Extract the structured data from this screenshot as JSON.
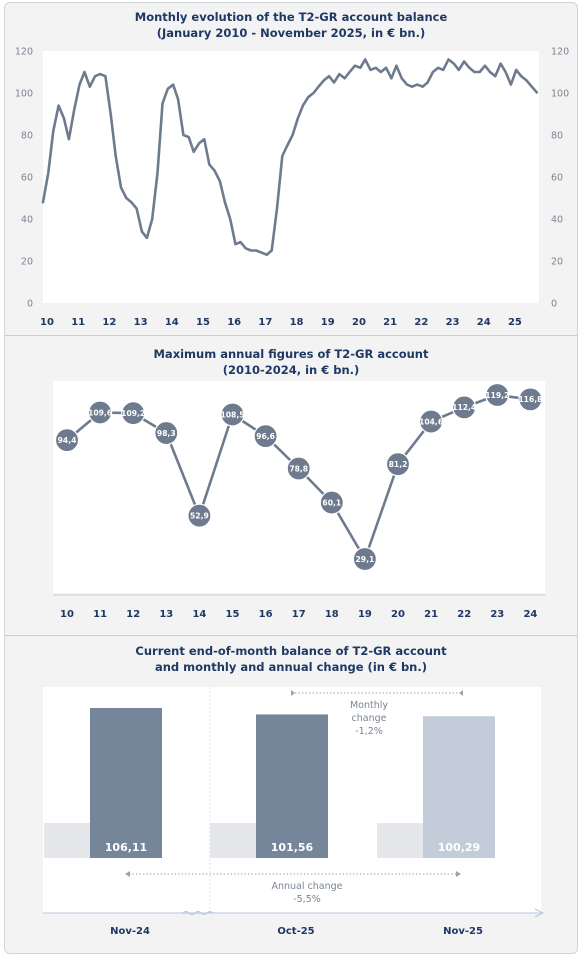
{
  "panels": {
    "monthly": {
      "title_line1": "Monthly evolution of the T2-GR account balance",
      "title_line2": "(January 2010  - November 2025,  in € bn.)"
    },
    "annual": {
      "title_line1": "Maximum annual figures of T2-GR account",
      "title_line2": "(2010-2024,  in € bn.)"
    },
    "current": {
      "title_line1": "Current end-of-month balance of T2-GR account",
      "title_line2": "and monthly and annual change (in € bn.)",
      "monthly_change_label_1": "Monthly",
      "monthly_change_label_2": "change",
      "monthly_change_value": "-1,2%",
      "annual_change_label": "Annual change",
      "annual_change_value": "-5,5%"
    }
  },
  "colors": {
    "line": "#6e7b8e",
    "bar_dark": "#75859a",
    "bar_light": "#c3ccd9",
    "title": "#1f3864",
    "axis": "#7c8594"
  },
  "chart_data": [
    {
      "type": "line",
      "title": "Monthly evolution of the T2-GR account balance (January 2010  - November 2025,  in € bn.)",
      "ylim": [
        0,
        120
      ],
      "y_ticks": [
        "0",
        "20",
        "40",
        "60",
        "80",
        "100",
        "120"
      ],
      "x_ticks": [
        "10",
        "11",
        "12",
        "13",
        "14",
        "15",
        "16",
        "17",
        "18",
        "19",
        "20",
        "21",
        "22",
        "23",
        "24",
        "25"
      ],
      "x": [
        2010.0,
        2010.17,
        2010.33,
        2010.5,
        2010.67,
        2010.83,
        2011.0,
        2011.17,
        2011.33,
        2011.5,
        2011.67,
        2011.83,
        2012.0,
        2012.17,
        2012.33,
        2012.5,
        2012.67,
        2012.83,
        2013.0,
        2013.17,
        2013.33,
        2013.5,
        2013.67,
        2013.83,
        2014.0,
        2014.17,
        2014.33,
        2014.5,
        2014.67,
        2014.83,
        2015.0,
        2015.17,
        2015.33,
        2015.5,
        2015.67,
        2015.83,
        2016.0,
        2016.17,
        2016.33,
        2016.5,
        2016.67,
        2016.83,
        2017.0,
        2017.17,
        2017.33,
        2017.5,
        2017.67,
        2017.83,
        2018.0,
        2018.17,
        2018.33,
        2018.5,
        2018.67,
        2018.83,
        2019.0,
        2019.17,
        2019.33,
        2019.5,
        2019.67,
        2019.83,
        2020.0,
        2020.17,
        2020.33,
        2020.5,
        2020.67,
        2020.83,
        2021.0,
        2021.17,
        2021.33,
        2021.5,
        2021.67,
        2021.83,
        2022.0,
        2022.17,
        2022.33,
        2022.5,
        2022.67,
        2022.83,
        2023.0,
        2023.17,
        2023.33,
        2023.5,
        2023.67,
        2023.83,
        2024.0,
        2024.17,
        2024.33,
        2024.5,
        2024.67,
        2024.83,
        2025.0,
        2025.17,
        2025.33,
        2025.5,
        2025.67,
        2025.83
      ],
      "series": [
        {
          "values": [
            48,
            62,
            82,
            94,
            88,
            78,
            92,
            104,
            110,
            103,
            108,
            109,
            108,
            90,
            70,
            55,
            50,
            48,
            45,
            34,
            31,
            40,
            62,
            95,
            102,
            104,
            97,
            80,
            79,
            72,
            76,
            78,
            66,
            63,
            58,
            48,
            40,
            28,
            29,
            26,
            25,
            25,
            24,
            23,
            25,
            45,
            70,
            75,
            80,
            88,
            94,
            98,
            100,
            103,
            106,
            108,
            105,
            109,
            107,
            110,
            113,
            112,
            116,
            111,
            112,
            110,
            112,
            107,
            113,
            107,
            104,
            103,
            104,
            103,
            105,
            110,
            112,
            111,
            116,
            114,
            111,
            115,
            112,
            110,
            110,
            113,
            110,
            108,
            114,
            110,
            104,
            111,
            108,
            106,
            103,
            100.3
          ]
        }
      ]
    },
    {
      "type": "line",
      "title": "Maximum annual figures of T2-GR account (2010-2024,  in € bn.)",
      "categories": [
        "10",
        "11",
        "12",
        "13",
        "14",
        "15",
        "16",
        "17",
        "18",
        "19",
        "20",
        "21",
        "22",
        "23",
        "24"
      ],
      "values": [
        94.4,
        109.6,
        109.2,
        98.3,
        52.9,
        108.5,
        96.6,
        78.8,
        60.1,
        29.1,
        81.2,
        104.6,
        112.4,
        119.2,
        116.8
      ],
      "data_labels": [
        "94,4",
        "109,6",
        "109,2",
        "98,3",
        "52,9",
        "108,5",
        "96,6",
        "78,8",
        "60,1",
        "29,1",
        "81,2",
        "104,6",
        "112,4",
        "119,2",
        "116,8"
      ],
      "ylim": [
        0,
        125
      ]
    },
    {
      "type": "bar",
      "title": "Current end-of-month balance of T2-GR account and monthly and annual change (in € bn.)",
      "categories": [
        "Nov-24",
        "Oct-25",
        "Nov-25"
      ],
      "values": [
        106.11,
        101.56,
        100.29
      ],
      "data_labels": [
        "106,11",
        "101,56",
        "100,29"
      ],
      "ylim": [
        0,
        110
      ]
    }
  ]
}
